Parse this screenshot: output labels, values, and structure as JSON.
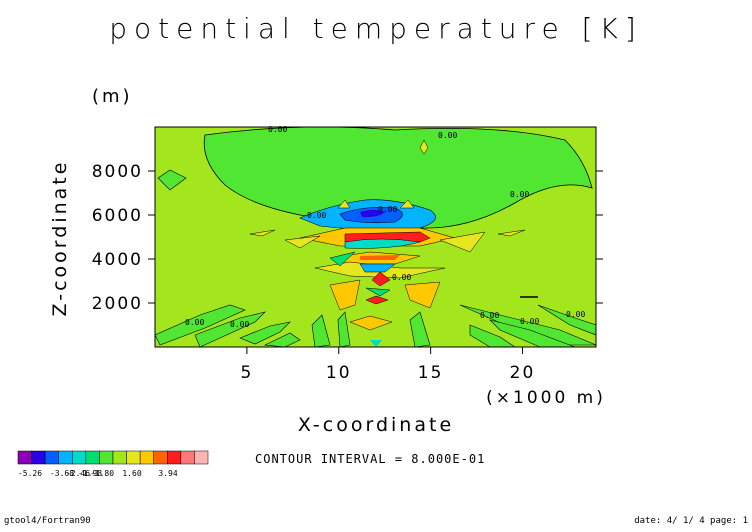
{
  "chart_data": {
    "type": "contour",
    "title": "potential temperature [K]",
    "xlabel": "X-coordinate",
    "xunit": "(×1000 m)",
    "ylabel": "Z-coordinate",
    "yunit": "(m)",
    "xlim": [
      0,
      24
    ],
    "ylim": [
      0,
      10000
    ],
    "xticks": [
      5,
      10,
      15,
      20
    ],
    "yticks": [
      2000,
      4000,
      6000,
      8000
    ],
    "contour_labels": [
      "0.00",
      "0.00",
      "0.00",
      "0.00",
      "0.00",
      "0.00",
      "0.00",
      "0.00",
      "0.00",
      "0.00",
      "0.00"
    ],
    "contour_interval_text": "CONTOUR INTERVAL = 8.000E-01",
    "colorbar": {
      "levels": [
        -5.26,
        -3.68,
        -2.46,
        -1.98,
        -1.8,
        -1.6,
        1.6,
        3.94
      ],
      "tick_labels": [
        "-5.26",
        "-3.68",
        "-2.46",
        "-1.98",
        "-1.80",
        "1.60",
        "3.94"
      ],
      "colors": [
        "#8a00b8",
        "#2a00e6",
        "#0060ff",
        "#00b4ff",
        "#00dcc8",
        "#00e070",
        "#50e632",
        "#a4e61e",
        "#e6e61e",
        "#ffc800",
        "#ff6400",
        "#ff1e1e",
        "#ff7878",
        "#ffb4b4"
      ]
    }
  },
  "footer": {
    "left": "gtool4/Fortran90",
    "right": "date: 4/ 1/ 4 page: 1"
  }
}
